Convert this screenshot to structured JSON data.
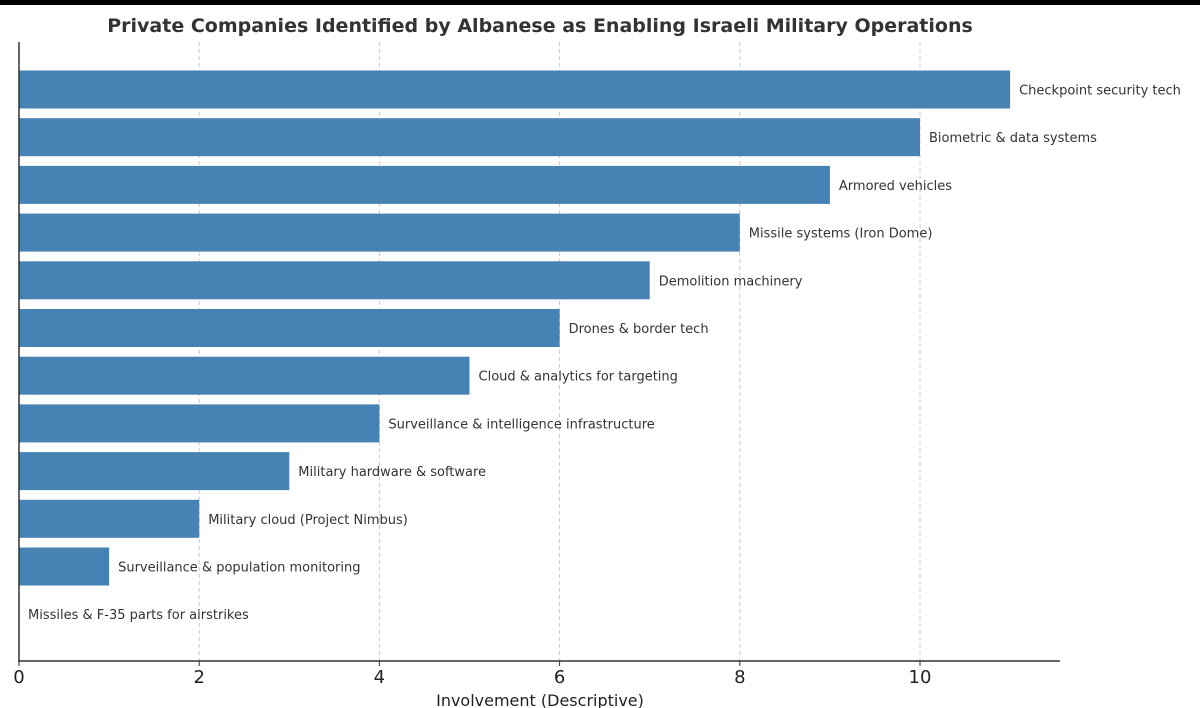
{
  "chart_data": {
    "type": "bar",
    "orientation": "horizontal",
    "title": "Private Companies Identified by Albanese as Enabling Israeli Military Operations",
    "xlabel": "Involvement (Descriptive)",
    "ylabel": "",
    "xlim": [
      0,
      11.5
    ],
    "xticks": [
      0,
      2,
      4,
      6,
      8,
      10
    ],
    "grid": "x, dashed",
    "bar_color": "#4682b4",
    "categories": [
      "Missiles & F-35 parts for airstrikes",
      "Surveillance & population monitoring",
      "Military cloud (Project Nimbus)",
      "Military hardware & software",
      "Surveillance & intelligence infrastructure",
      "Cloud & analytics for targeting",
      "Drones & border tech",
      "Demolition machinery",
      "Missile systems (Iron Dome)",
      "Armored vehicles",
      "Biometric & data systems",
      "Checkpoint security tech"
    ],
    "values": [
      0,
      1,
      2,
      3,
      4,
      5,
      6,
      7,
      8,
      9,
      10,
      11
    ]
  }
}
